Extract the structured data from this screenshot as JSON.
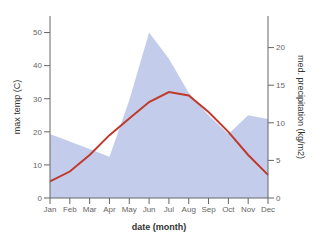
{
  "chart_data": {
    "type": "line",
    "xlabel": "date (month)",
    "ylabel": "max temp (C)",
    "y2label": "med. precipitation (kg/m2)",
    "categories": [
      "Jan",
      "Feb",
      "Mar",
      "Apr",
      "May",
      "Jun",
      "Jul",
      "Aug",
      "Sep",
      "Oct",
      "Nov",
      "Dec"
    ],
    "series": [
      {
        "type": "area",
        "axis": "y2",
        "color": "#b8c4e8",
        "values": [
          8.5,
          7.5,
          6.5,
          5.5,
          13.0,
          22.0,
          18.5,
          14.0,
          11.0,
          8.5,
          11.0,
          10.5
        ]
      },
      {
        "type": "line",
        "color": "#c0392b",
        "values": [
          5,
          8,
          13,
          19,
          24,
          29,
          32,
          31,
          26,
          20,
          13,
          7
        ]
      }
    ],
    "ylim": [
      0,
      55
    ],
    "yticks": [
      0,
      10,
      20,
      30,
      40,
      50
    ],
    "y2lim": [
      0,
      24.2
    ],
    "y2ticks": [
      0,
      5,
      10,
      15,
      20
    ],
    "grid": false
  }
}
